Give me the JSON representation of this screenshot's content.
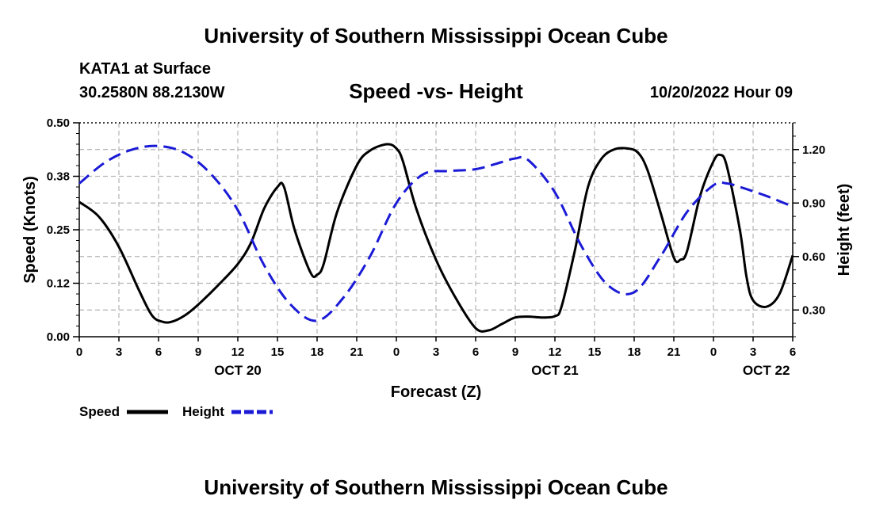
{
  "header": {
    "title": "University of Southern Mississippi Ocean Cube",
    "station": "KATA1 at Surface",
    "coords": "30.2580N  88.2130W",
    "chart_title": "Speed -vs- Height",
    "datetime": "10/20/2022 Hour 09",
    "footer_title": "University of Southern Mississippi Ocean Cube"
  },
  "colors": {
    "speed": "#000000",
    "height": "#1a1ad6",
    "grid": "#b4b4b4"
  },
  "chart_data": {
    "type": "line",
    "title": "Speed -vs- Height",
    "xlabel": "Forecast (Z)",
    "ylabel": "Speed (Knots)",
    "y2label": "Height (feet)",
    "xlim": [
      0,
      54
    ],
    "ylim": [
      0,
      0.5
    ],
    "y2lim": [
      0.15,
      1.35
    ],
    "yticks": [
      0,
      0.125,
      0.25,
      0.375,
      0.5
    ],
    "ytick_labels": [
      "0.00",
      "0.12",
      "0.25",
      "0.38",
      "0.50"
    ],
    "y2ticks": [
      0.3,
      0.6,
      0.9,
      1.2
    ],
    "y2tick_labels": [
      "0.30",
      "0.60",
      "0.90",
      "1.20"
    ],
    "xticks": [
      0,
      3,
      6,
      9,
      12,
      15,
      18,
      21,
      24,
      27,
      30,
      33,
      36,
      39,
      42,
      45,
      48,
      51,
      54
    ],
    "xtick_labels": [
      "0",
      "3",
      "6",
      "9",
      "12",
      "15",
      "18",
      "21",
      "0",
      "3",
      "6",
      "9",
      "12",
      "15",
      "18",
      "21",
      "0",
      "3",
      "6"
    ],
    "date_labels": [
      {
        "x": 12,
        "label": "OCT 20"
      },
      {
        "x": 36,
        "label": "OCT 21"
      },
      {
        "x": 52,
        "label": "OCT 22"
      }
    ],
    "grid": true,
    "legend": [
      {
        "name": "Speed",
        "style": "solid"
      },
      {
        "name": "Height",
        "style": "dashed"
      }
    ],
    "series": [
      {
        "name": "Speed",
        "axis": "left",
        "x": [
          0,
          1.5,
          3,
          4.5,
          5.5,
          6.3,
          7,
          8,
          9,
          10.5,
          12,
          13,
          14,
          15,
          15.5,
          16.3,
          17.5,
          18,
          18.5,
          19.5,
          21,
          22,
          23.3,
          24,
          24.5,
          25.5,
          27,
          28.5,
          30,
          31,
          32,
          33,
          34,
          35,
          36,
          36.5,
          37.5,
          38.5,
          39.5,
          40.5,
          41.5,
          42.3,
          43,
          44,
          45,
          45.5,
          46,
          47,
          48,
          48.5,
          49,
          50,
          50.5,
          51,
          52,
          53,
          54
        ],
        "values": [
          0.315,
          0.28,
          0.21,
          0.11,
          0.05,
          0.035,
          0.035,
          0.05,
          0.075,
          0.12,
          0.17,
          0.22,
          0.3,
          0.35,
          0.35,
          0.25,
          0.15,
          0.145,
          0.17,
          0.29,
          0.4,
          0.435,
          0.45,
          0.44,
          0.41,
          0.3,
          0.18,
          0.09,
          0.02,
          0.015,
          0.03,
          0.045,
          0.047,
          0.045,
          0.048,
          0.07,
          0.2,
          0.35,
          0.415,
          0.438,
          0.44,
          0.43,
          0.39,
          0.29,
          0.185,
          0.18,
          0.2,
          0.33,
          0.41,
          0.425,
          0.4,
          0.25,
          0.14,
          0.085,
          0.07,
          0.1,
          0.19
        ]
      },
      {
        "name": "Height",
        "axis": "right",
        "x": [
          0,
          2,
          4,
          6,
          8,
          10,
          12,
          14,
          16,
          18,
          20,
          22,
          24,
          26,
          28,
          30,
          32,
          33,
          34,
          36,
          38,
          40,
          42,
          44,
          46,
          48,
          49,
          50,
          52,
          54
        ],
        "values": [
          1.01,
          1.13,
          1.2,
          1.22,
          1.18,
          1.06,
          0.86,
          0.55,
          0.33,
          0.24,
          0.37,
          0.6,
          0.9,
          1.06,
          1.08,
          1.09,
          1.13,
          1.15,
          1.14,
          0.96,
          0.66,
          0.44,
          0.4,
          0.6,
          0.85,
          1.0,
          1.01,
          0.99,
          0.94,
          0.88
        ]
      }
    ]
  }
}
